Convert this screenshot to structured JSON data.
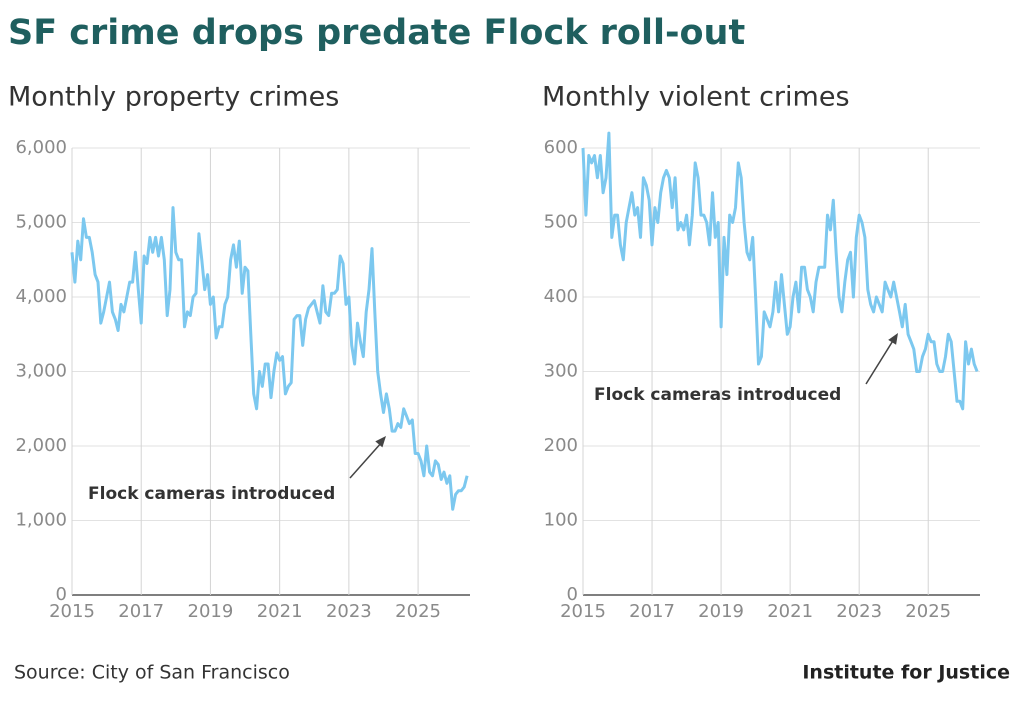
{
  "title": "SF crime drops predate Flock roll-out",
  "source": "Source: City of San Francisco",
  "credit": "Institute for Justice",
  "chart_data": [
    {
      "type": "line",
      "title": "Monthly property crimes",
      "annotation": "Flock cameras introduced",
      "grid": true,
      "xlim": [
        2015,
        2026.5
      ],
      "xticks": [
        2015,
        2017,
        2019,
        2021,
        2023,
        2025
      ],
      "ylim": [
        0,
        6000
      ],
      "yticks": [
        0,
        {
          "value": 1000,
          "label": "1,000"
        },
        {
          "value": 2000,
          "label": "2,000"
        },
        {
          "value": 3000,
          "label": "3,000"
        },
        {
          "value": 4000,
          "label": "4,000"
        },
        {
          "value": 5000,
          "label": "5,000"
        },
        {
          "value": 6000,
          "label": "6,000"
        }
      ],
      "x": [
        2015,
        2015.083,
        2015.167,
        2015.25,
        2015.333,
        2015.417,
        2015.5,
        2015.583,
        2015.667,
        2015.75,
        2015.833,
        2015.917,
        2016,
        2016.083,
        2016.167,
        2016.25,
        2016.333,
        2016.417,
        2016.5,
        2016.583,
        2016.667,
        2016.75,
        2016.833,
        2016.917,
        2017,
        2017.083,
        2017.167,
        2017.25,
        2017.333,
        2017.417,
        2017.5,
        2017.583,
        2017.667,
        2017.75,
        2017.833,
        2017.917,
        2018,
        2018.083,
        2018.167,
        2018.25,
        2018.333,
        2018.417,
        2018.5,
        2018.583,
        2018.667,
        2018.75,
        2018.833,
        2018.917,
        2019,
        2019.083,
        2019.167,
        2019.25,
        2019.333,
        2019.417,
        2019.5,
        2019.583,
        2019.667,
        2019.75,
        2019.833,
        2019.917,
        2020,
        2020.083,
        2020.167,
        2020.25,
        2020.333,
        2020.417,
        2020.5,
        2020.583,
        2020.667,
        2020.75,
        2020.833,
        2020.917,
        2021,
        2021.083,
        2021.167,
        2021.25,
        2021.333,
        2021.417,
        2021.5,
        2021.583,
        2021.667,
        2021.75,
        2021.833,
        2021.917,
        2022,
        2022.083,
        2022.167,
        2022.25,
        2022.333,
        2022.417,
        2022.5,
        2022.583,
        2022.667,
        2022.75,
        2022.833,
        2022.917,
        2023,
        2023.083,
        2023.167,
        2023.25,
        2023.333,
        2023.417,
        2023.5,
        2023.583,
        2023.667,
        2023.75,
        2023.833,
        2023.917,
        2024,
        2024.083,
        2024.167,
        2024.25,
        2024.333,
        2024.417,
        2024.5,
        2024.583,
        2024.667,
        2024.75,
        2024.833,
        2024.917,
        2025,
        2025.083,
        2025.167,
        2025.25,
        2025.333,
        2025.417,
        2025.5,
        2025.583,
        2025.667,
        2025.75,
        2025.833,
        2025.917,
        2026,
        2026.083,
        2026.167,
        2026.25,
        2026.333,
        2026.417
      ],
      "series": [
        {
          "color": "#7cc8ef",
          "values": [
            4600,
            4200,
            4750,
            4500,
            5050,
            4800,
            4800,
            4600,
            4300,
            4200,
            3650,
            3800,
            4000,
            4200,
            3800,
            3700,
            3550,
            3900,
            3800,
            4000,
            4200,
            4200,
            4600,
            4100,
            3650,
            4550,
            4450,
            4800,
            4600,
            4800,
            4550,
            4800,
            4500,
            3750,
            4100,
            5200,
            4600,
            4500,
            4500,
            3600,
            3800,
            3750,
            4000,
            4050,
            4850,
            4500,
            4100,
            4300,
            3900,
            4000,
            3450,
            3600,
            3600,
            3900,
            4000,
            4500,
            4700,
            4400,
            4750,
            4050,
            4400,
            4350,
            3500,
            2700,
            2500,
            3000,
            2800,
            3100,
            3100,
            2650,
            3000,
            3250,
            3150,
            3200,
            2700,
            2800,
            2850,
            3700,
            3750,
            3750,
            3350,
            3700,
            3850,
            3900,
            3950,
            3800,
            3650,
            4150,
            3800,
            3750,
            4050,
            4050,
            4100,
            4550,
            4450,
            3900,
            4000,
            3350,
            3100,
            3650,
            3400,
            3200,
            3800,
            4100,
            4650,
            3800,
            3000,
            2700,
            2450,
            2700,
            2500,
            2200,
            2200,
            2300,
            2250,
            2500,
            2400,
            2300,
            2350,
            1900,
            1900,
            1800,
            1600,
            2000,
            1650,
            1600,
            1800,
            1750,
            1550,
            1650,
            1500,
            1600,
            1150,
            1350,
            1400,
            1400,
            1450,
            1600
          ]
        }
      ]
    },
    {
      "type": "line",
      "title": "Monthly violent crimes",
      "annotation": "Flock cameras introduced",
      "grid": true,
      "xlim": [
        2015,
        2026.5
      ],
      "xticks": [
        2015,
        2017,
        2019,
        2021,
        2023,
        2025
      ],
      "ylim": [
        0,
        600
      ],
      "yticks": [
        0,
        100,
        200,
        300,
        400,
        500,
        600
      ],
      "x": [
        2015,
        2015.083,
        2015.167,
        2015.25,
        2015.333,
        2015.417,
        2015.5,
        2015.583,
        2015.667,
        2015.75,
        2015.833,
        2015.917,
        2016,
        2016.083,
        2016.167,
        2016.25,
        2016.333,
        2016.417,
        2016.5,
        2016.583,
        2016.667,
        2016.75,
        2016.833,
        2016.917,
        2017,
        2017.083,
        2017.167,
        2017.25,
        2017.333,
        2017.417,
        2017.5,
        2017.583,
        2017.667,
        2017.75,
        2017.833,
        2017.917,
        2018,
        2018.083,
        2018.167,
        2018.25,
        2018.333,
        2018.417,
        2018.5,
        2018.583,
        2018.667,
        2018.75,
        2018.833,
        2018.917,
        2019,
        2019.083,
        2019.167,
        2019.25,
        2019.333,
        2019.417,
        2019.5,
        2019.583,
        2019.667,
        2019.75,
        2019.833,
        2019.917,
        2020,
        2020.083,
        2020.167,
        2020.25,
        2020.333,
        2020.417,
        2020.5,
        2020.583,
        2020.667,
        2020.75,
        2020.833,
        2020.917,
        2021,
        2021.083,
        2021.167,
        2021.25,
        2021.333,
        2021.417,
        2021.5,
        2021.583,
        2021.667,
        2021.75,
        2021.833,
        2021.917,
        2022,
        2022.083,
        2022.167,
        2022.25,
        2022.333,
        2022.417,
        2022.5,
        2022.583,
        2022.667,
        2022.75,
        2022.833,
        2022.917,
        2023,
        2023.083,
        2023.167,
        2023.25,
        2023.333,
        2023.417,
        2023.5,
        2023.583,
        2023.667,
        2023.75,
        2023.833,
        2023.917,
        2024,
        2024.083,
        2024.167,
        2024.25,
        2024.333,
        2024.417,
        2024.5,
        2024.583,
        2024.667,
        2024.75,
        2024.833,
        2024.917,
        2025,
        2025.083,
        2025.167,
        2025.25,
        2025.333,
        2025.417,
        2025.5,
        2025.583,
        2025.667,
        2025.75,
        2025.833,
        2025.917,
        2026,
        2026.083,
        2026.167,
        2026.25,
        2026.333,
        2026.417
      ],
      "series": [
        {
          "color": "#7cc8ef",
          "values": [
            600,
            510,
            590,
            580,
            590,
            560,
            590,
            540,
            560,
            620,
            480,
            510,
            510,
            470,
            450,
            500,
            520,
            540,
            510,
            520,
            480,
            560,
            550,
            530,
            470,
            520,
            500,
            540,
            560,
            570,
            560,
            520,
            560,
            490,
            500,
            490,
            510,
            470,
            510,
            580,
            560,
            510,
            510,
            500,
            470,
            540,
            480,
            500,
            360,
            480,
            430,
            510,
            500,
            520,
            580,
            560,
            500,
            460,
            450,
            480,
            400,
            310,
            320,
            380,
            370,
            360,
            380,
            420,
            380,
            430,
            390,
            350,
            360,
            400,
            420,
            380,
            440,
            440,
            410,
            400,
            380,
            420,
            440,
            440,
            440,
            510,
            490,
            530,
            460,
            400,
            380,
            420,
            450,
            460,
            400,
            480,
            510,
            500,
            480,
            410,
            390,
            380,
            400,
            390,
            380,
            420,
            410,
            400,
            420,
            400,
            380,
            360,
            390,
            350,
            340,
            330,
            300,
            300,
            320,
            330,
            350,
            340,
            340,
            310,
            300,
            300,
            320,
            350,
            340,
            300,
            260,
            260,
            250,
            340,
            310,
            330,
            310,
            300
          ]
        }
      ]
    }
  ]
}
